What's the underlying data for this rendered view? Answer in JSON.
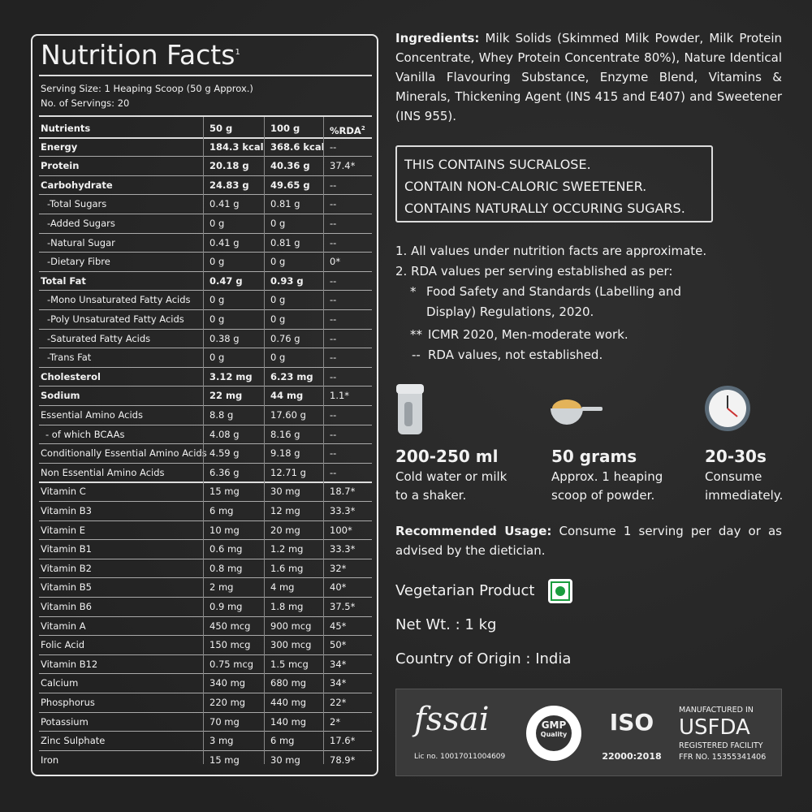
{
  "nutrition": {
    "title": "Nutrition Facts",
    "title_sup": "1",
    "serving_size": "Serving Size: 1 Heaping Scoop (50 g Approx.)",
    "servings": "No. of Servings: 20",
    "header": [
      "Nutrients",
      "50 g",
      "100 g",
      "%RDA"
    ],
    "header_sup": "2",
    "rows": [
      {
        "cells": [
          "Energy",
          "184.3 kcal",
          "368.6 kcal",
          "--"
        ],
        "bold": true
      },
      {
        "cells": [
          "Protein",
          "20.18 g",
          "40.36 g",
          "37.4*"
        ],
        "bold": true
      },
      {
        "cells": [
          "Carbohydrate",
          "24.83 g",
          "49.65 g",
          "--"
        ],
        "bold": true
      },
      {
        "cells": [
          "-Total Sugars",
          "0.41 g",
          "0.81 g",
          "--"
        ]
      },
      {
        "cells": [
          "-Added Sugars",
          "0 g",
          "0 g",
          "--"
        ]
      },
      {
        "cells": [
          "-Natural Sugar",
          "0.41 g",
          "0.81 g",
          "--"
        ]
      },
      {
        "cells": [
          "-Dietary Fibre",
          "0 g",
          "0 g",
          "0*"
        ]
      },
      {
        "cells": [
          "Total Fat",
          "0.47 g",
          "0.93 g",
          "--"
        ],
        "bold": true
      },
      {
        "cells": [
          "-Mono Unsaturated Fatty Acids",
          "0 g",
          "0 g",
          "--"
        ]
      },
      {
        "cells": [
          "-Poly Unsaturated Fatty Acids",
          "0 g",
          "0 g",
          "--"
        ]
      },
      {
        "cells": [
          "-Saturated Fatty Acids",
          "0.38 g",
          "0.76 g",
          "--"
        ]
      },
      {
        "cells": [
          "-Trans Fat",
          "0 g",
          "0 g",
          "--"
        ]
      },
      {
        "cells": [
          "Cholesterol",
          "3.12 mg",
          "6.23 mg",
          "--"
        ],
        "bold": true
      },
      {
        "cells": [
          "Sodium",
          "22 mg",
          "44 mg",
          "1.1*"
        ],
        "bold": true
      },
      {
        "cells": [
          "Essential Amino Acids",
          "8.8 g",
          "17.60 g",
          "--"
        ]
      },
      {
        "cells": [
          "- of which BCAAs",
          "4.08 g",
          "8.16 g",
          "--"
        ]
      },
      {
        "cells": [
          "Conditionally Essential Amino Acids",
          "4.59 g",
          "9.18 g",
          "--"
        ]
      },
      {
        "cells": [
          "Non Essential Amino Acids",
          "6.36 g",
          "12.71 g",
          "--"
        ]
      },
      {
        "cells": [
          "Vitamin C",
          "15 mg",
          "30 mg",
          "18.7*"
        ]
      },
      {
        "cells": [
          "Vitamin B3",
          "6 mg",
          "12 mg",
          "33.3*"
        ]
      },
      {
        "cells": [
          "Vitamin E",
          "10 mg",
          "20 mg",
          "100*"
        ]
      },
      {
        "cells": [
          "Vitamin B1",
          "0.6 mg",
          "1.2 mg",
          "33.3*"
        ]
      },
      {
        "cells": [
          "Vitamin B2",
          "0.8 mg",
          "1.6 mg",
          "32*"
        ]
      },
      {
        "cells": [
          "Vitamin B5",
          "2 mg",
          "4 mg",
          "40*"
        ]
      },
      {
        "cells": [
          "Vitamin B6",
          "0.9 mg",
          "1.8 mg",
          "37.5*"
        ]
      },
      {
        "cells": [
          "Vitamin A",
          "450 mcg",
          "900 mcg",
          "45*"
        ]
      },
      {
        "cells": [
          "Folic Acid",
          "150 mcg",
          "300 mcg",
          "50*"
        ]
      },
      {
        "cells": [
          "Vitamin B12",
          "0.75 mcg",
          "1.5 mcg",
          "34*"
        ]
      },
      {
        "cells": [
          "Calcium",
          "340 mg",
          "680 mg",
          "34*"
        ]
      },
      {
        "cells": [
          "Phosphorus",
          "220 mg",
          "440 mg",
          "22*"
        ]
      },
      {
        "cells": [
          "Potassium",
          "70 mg",
          "140 mg",
          "2*"
        ]
      },
      {
        "cells": [
          "Zinc Sulphate",
          "3 mg",
          "6 mg",
          "17.6*"
        ]
      },
      {
        "cells": [
          "Iron",
          "15 mg",
          "30 mg",
          "78.9*"
        ]
      }
    ]
  },
  "ingredients": {
    "label": "Ingredients:",
    "text": "Milk Solids (Skimmed Milk Powder, Milk Protein Concentrate, Whey Protein Concentrate 80%), Nature Identical Vanilla Flavouring Substance, Enzyme Blend, Vitamins & Minerals, Thickening Agent (INS 415 and E407) and Sweetener (INS 955)."
  },
  "warning": [
    "THIS CONTAINS SUCRALOSE.",
    "CONTAIN NON-CALORIC SWEETENER.",
    "CONTAINS NATURALLY OCCURING SUGARS."
  ],
  "notes": [
    {
      "marker": "1.",
      "text": "All values under nutrition facts are approximate."
    },
    {
      "marker": "2.",
      "text": "RDA values per serving established as per:"
    }
  ],
  "subnotes": [
    {
      "marker": "*",
      "text": "Food Safety and Standards (Labelling and Display) Regulations, 2020."
    },
    {
      "marker": "**",
      "text": "ICMR 2020, Men-moderate work."
    },
    {
      "marker": "--",
      "text": "RDA values, not established."
    }
  ],
  "usage_steps": [
    {
      "title": "200-250 ml",
      "text": "Cold water or milk to a shaker."
    },
    {
      "title": "50 grams",
      "text": "Approx. 1 heaping scoop of powder."
    },
    {
      "title": "20-30s",
      "text": "Consume immediately."
    }
  ],
  "recommended": {
    "label": "Recommended Usage:",
    "text": "Consume 1 serving per day or as advised by the dietician."
  },
  "vegetarian": "Vegetarian Product",
  "net_wt": "Net Wt. : 1 kg",
  "origin": "Country of Origin : India",
  "certifications": {
    "fssai": "fssai",
    "fssai_lic": "Lic no. 10017011004609",
    "gmp": "GMP",
    "gmp_sub": "Quality",
    "iso": "ISO",
    "iso_std": "22000:2018",
    "usfda_top": "MANUFACTURED IN",
    "usfda": "USFDA",
    "usfda_sub": "REGISTERED FACILITY",
    "usfda_ffr": "FFR NO. 15355341406"
  }
}
